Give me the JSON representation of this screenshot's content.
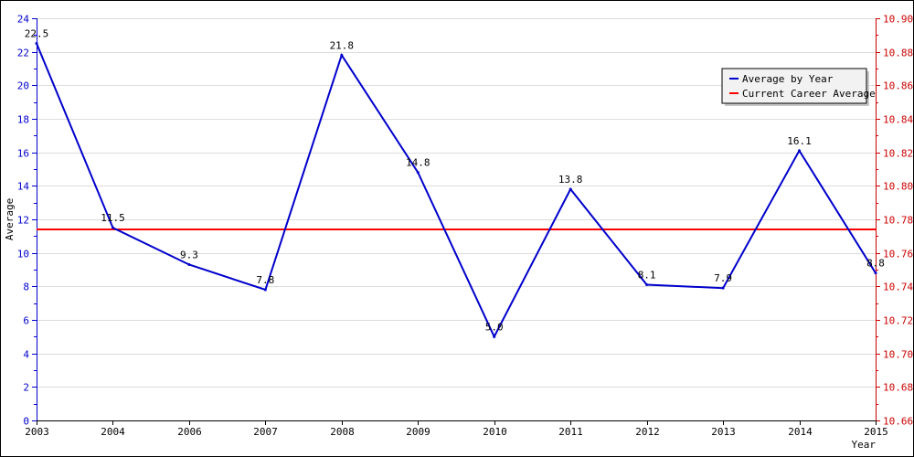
{
  "chart_data": {
    "type": "line",
    "title": "",
    "xlabel": "Year",
    "ylabel": "Average",
    "x": [
      "2003",
      "2004",
      "2006",
      "2007",
      "2008",
      "2009",
      "2010",
      "2011",
      "2012",
      "2013",
      "2014",
      "2015"
    ],
    "ylim": [
      0,
      24
    ],
    "yticks": [
      0,
      2,
      4,
      6,
      8,
      10,
      12,
      14,
      16,
      18,
      20,
      22,
      24
    ],
    "y2lim": [
      10.66,
      10.9
    ],
    "y2ticks": [
      "10.66",
      "10.68",
      "10.70",
      "10.72",
      "10.74",
      "10.76",
      "10.78",
      "10.80",
      "10.82",
      "10.84",
      "10.86",
      "10.88",
      "10.90"
    ],
    "series": [
      {
        "name": "Average by Year",
        "color": "#0000cc",
        "axis": "left",
        "values": [
          22.5,
          11.5,
          9.3,
          7.8,
          21.8,
          14.8,
          5.0,
          13.8,
          8.1,
          7.9,
          16.1,
          8.8
        ],
        "labels": [
          "22.5",
          "11.5",
          "9.3",
          "7.8",
          "21.8",
          "14.8",
          "5.0",
          "13.8",
          "8.1",
          "7.9",
          "16.1",
          "8.8"
        ]
      },
      {
        "name": "Current Career Average",
        "color": "#ff0000",
        "axis": "right",
        "constant": 10.774
      }
    ],
    "grid": true,
    "legend": "top-right"
  }
}
